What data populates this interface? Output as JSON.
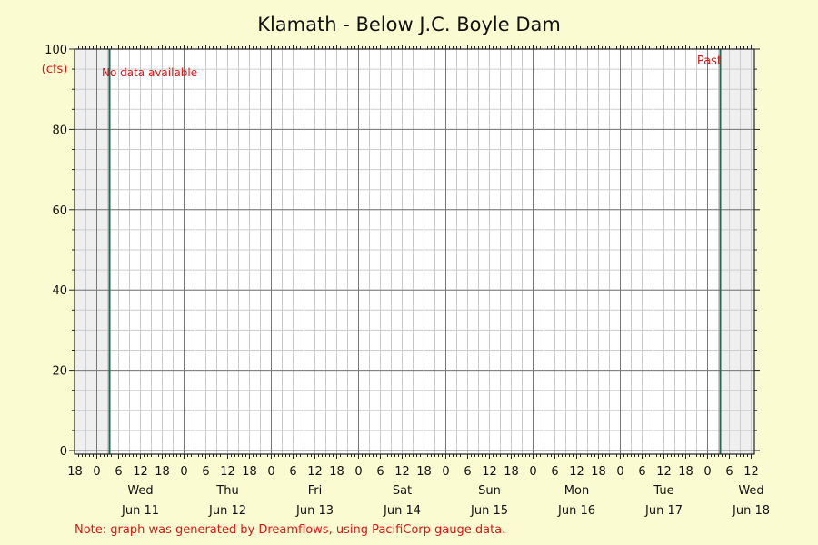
{
  "chart_data": {
    "type": "line",
    "title": "Klamath - Below J.C. Boyle Dam",
    "ylabel": "(cfs)",
    "ylim": [
      0,
      100
    ],
    "yticks": [
      0,
      20,
      40,
      60,
      80,
      100
    ],
    "xlim_hours": [
      -12,
      180
    ],
    "x_hour_labels": [
      "18",
      "0",
      "6",
      "12",
      "18",
      "0",
      "6",
      "12",
      "18",
      "0",
      "6",
      "12",
      "18",
      "0",
      "6",
      "12",
      "18",
      "0",
      "6",
      "12",
      "18",
      "0",
      "6",
      "12",
      "18",
      "0",
      "6",
      "12",
      "18",
      "0",
      "6",
      "12"
    ],
    "days": [
      {
        "weekday": "Wed",
        "date": "Jun 11"
      },
      {
        "weekday": "Thu",
        "date": "Jun 12"
      },
      {
        "weekday": "Fri",
        "date": "Jun 13"
      },
      {
        "weekday": "Sat",
        "date": "Jun 14"
      },
      {
        "weekday": "Sun",
        "date": "Jun 15"
      },
      {
        "weekday": "Mon",
        "date": "Jun 16"
      },
      {
        "weekday": "Tue",
        "date": "Jun 17"
      },
      {
        "weekday": "Wed",
        "date": "Jun 18"
      }
    ],
    "series": [],
    "annotations": {
      "no_data": "No data available",
      "past": "Past",
      "note": "Note: graph was generated by Dreamflows, using PacifiCorp gauge data."
    },
    "grid": true
  },
  "colors": {
    "background": "#fbfbd1",
    "plot": "#ffffff",
    "shade": "#efefef",
    "grid_minor": "#cccccc",
    "grid_major": "#777777",
    "marker": "#1f6b55",
    "annotation": "#d71919"
  }
}
